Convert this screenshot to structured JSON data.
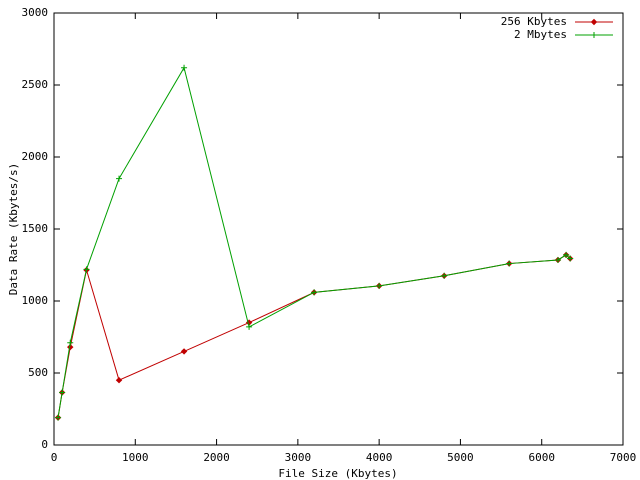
{
  "chart_data": {
    "type": "line",
    "xlabel": "File Size (Kbytes)",
    "ylabel": "Data Rate (Kbytes/s)",
    "xlim": [
      0,
      7000
    ],
    "xticks": [
      0,
      1000,
      2000,
      3000,
      4000,
      5000,
      6000,
      7000
    ],
    "ylim": [
      0,
      3000
    ],
    "yticks": [
      0,
      500,
      1000,
      1500,
      2000,
      2500,
      3000
    ],
    "legend": "top-right",
    "series": [
      {
        "name": "256 Kbytes",
        "color": "#c00000",
        "marker": "diamond",
        "x": [
          50,
          100,
          200,
          400,
          800,
          1600,
          2400,
          3200,
          4000,
          4800,
          5600,
          6200,
          6300,
          6350
        ],
        "values": [
          190,
          365,
          680,
          1215,
          450,
          650,
          850,
          1060,
          1105,
          1175,
          1260,
          1285,
          1320,
          1295
        ]
      },
      {
        "name": "2 Mbytes",
        "color": "#00a000",
        "marker": "plus",
        "x": [
          50,
          100,
          200,
          400,
          800,
          1600,
          2400,
          3200,
          4000,
          4800,
          5600,
          6200,
          6300,
          6350
        ],
        "values": [
          190,
          365,
          710,
          1220,
          1850,
          2620,
          820,
          1060,
          1105,
          1175,
          1260,
          1285,
          1320,
          1295
        ]
      }
    ]
  }
}
